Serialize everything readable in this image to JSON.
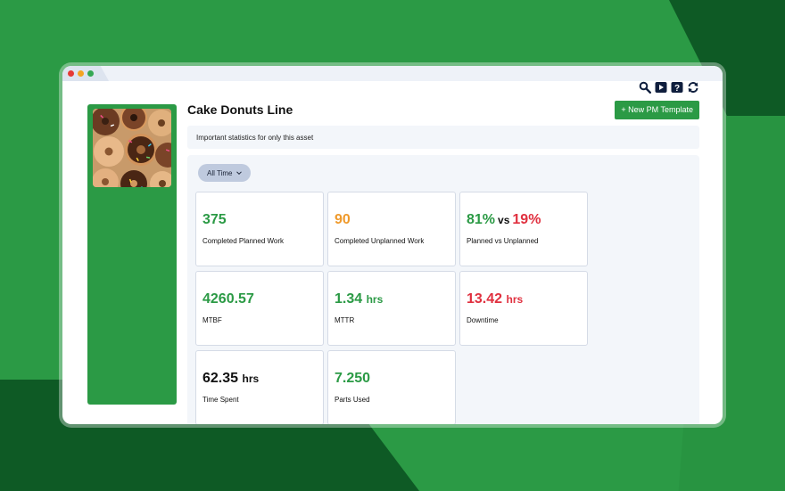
{
  "colors": {
    "green": "#2b9a45",
    "orange": "#ef9a2c",
    "red": "#e0303f",
    "black": "#111111"
  },
  "header": {
    "title": "Cake Donuts Line",
    "new_pm_label": "+ New PM Template",
    "icons": [
      "search-icon",
      "play-icon",
      "help-icon",
      "refresh-icon"
    ]
  },
  "info_banner": "Important statistics for only this asset",
  "filter": {
    "selected": "All Time"
  },
  "stats": {
    "completed_planned": {
      "value": "375",
      "label": "Completed Planned Work"
    },
    "completed_unplanned": {
      "value": "90",
      "label": "Completed Unplanned Work"
    },
    "planned_vs_unplanned": {
      "planned": "81%",
      "sep": "vs",
      "unplanned": "19%",
      "label": "Planned vs Unplanned"
    },
    "mtbf": {
      "value": "4260.57",
      "label": "MTBF"
    },
    "mttr": {
      "value": "1.34",
      "unit": "hrs",
      "label": "MTTR"
    },
    "downtime": {
      "value": "13.42",
      "unit": "hrs",
      "label": "Downtime"
    },
    "time_spent": {
      "value": "62.35",
      "unit": "hrs",
      "label": "Time Spent"
    },
    "parts_used": {
      "value": "7.250",
      "label": "Parts Used"
    }
  }
}
